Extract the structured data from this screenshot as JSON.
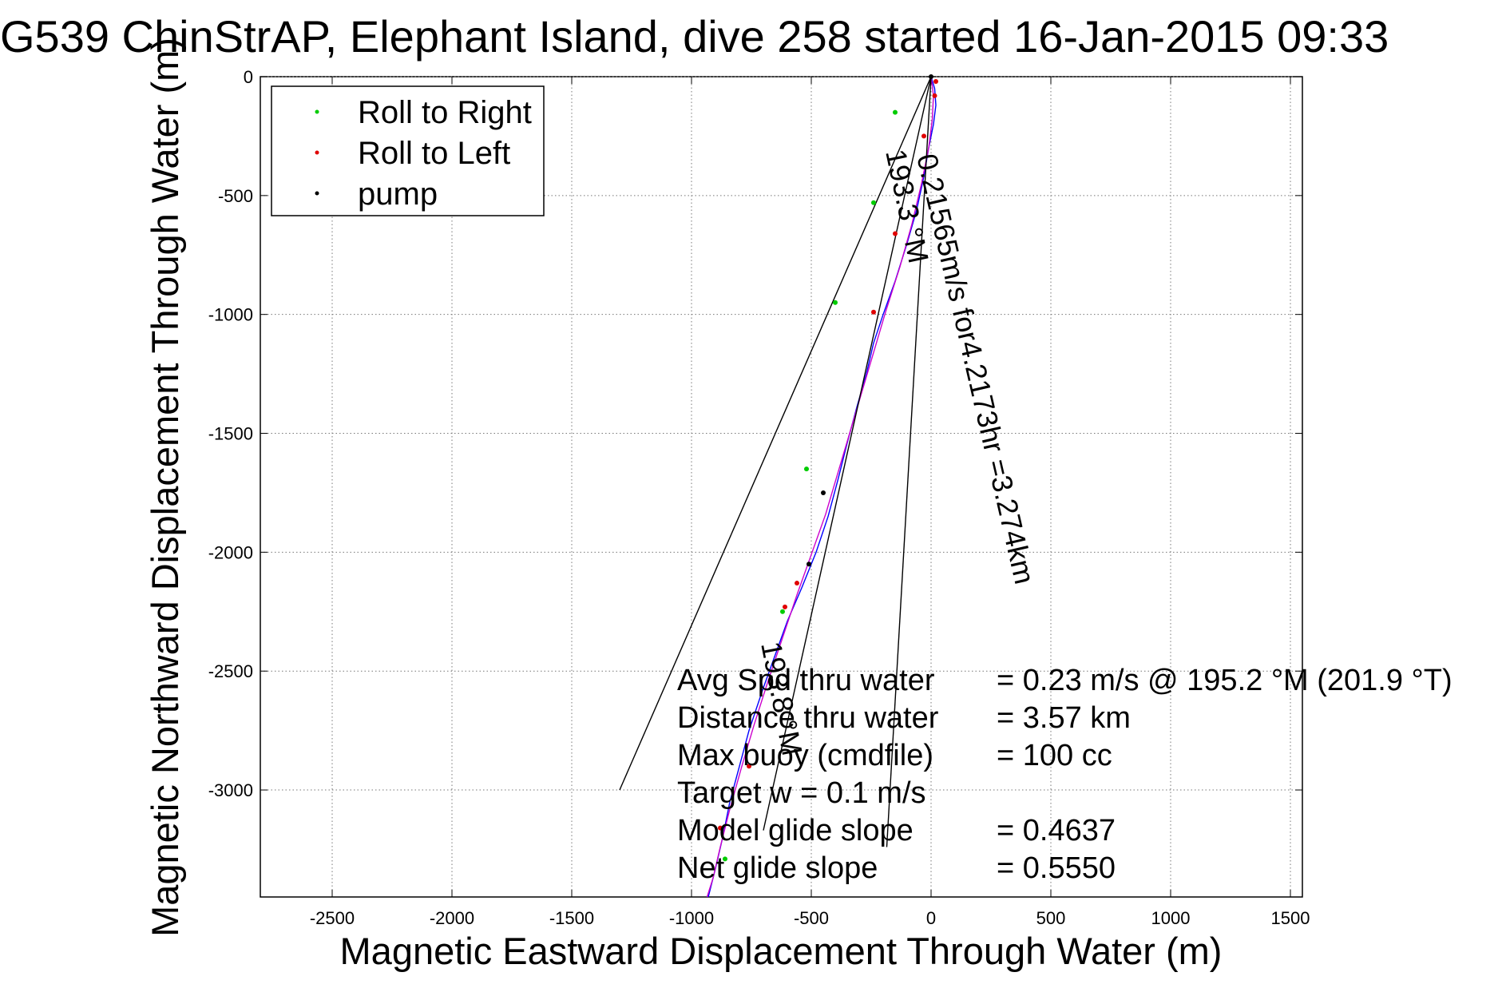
{
  "chart_data": {
    "type": "line",
    "title": "G539 ChinStrAP, Elephant Island, dive 258 started 16-Jan-2015 09:33",
    "xlabel": "Magnetic Eastward Displacement Through Water (m)",
    "ylabel": "Magnetic Northward Displacement Through Water (m)",
    "xlim": [
      -2800,
      1550
    ],
    "ylim": [
      -3450,
      0
    ],
    "xticks": [
      -2500,
      -2000,
      -1500,
      -1000,
      -500,
      0,
      500,
      1000,
      1500
    ],
    "yticks": [
      0,
      -500,
      -1000,
      -1500,
      -2000,
      -2500,
      -3000
    ],
    "grid": true,
    "legend_position": "top-left",
    "legend": [
      {
        "label": "Roll to Right",
        "color": "#00cc00"
      },
      {
        "label": "Roll to Left",
        "color": "#e00000"
      },
      {
        "label": "pump",
        "color": "#000000"
      }
    ],
    "series": [
      {
        "color": "#0000ff",
        "x": [
          0,
          15,
          20,
          10,
          -10,
          -30,
          -60,
          -100,
          -150,
          -200,
          -240,
          -270,
          -310,
          -350,
          -390,
          -430,
          -480,
          -540,
          -600,
          -650,
          -700,
          -760,
          -800,
          -840,
          -870,
          -900,
          -930
        ],
        "y": [
          0,
          -50,
          -120,
          -200,
          -300,
          -420,
          -560,
          -700,
          -860,
          -1000,
          -1120,
          -1250,
          -1390,
          -1540,
          -1700,
          -1850,
          -2000,
          -2150,
          -2290,
          -2430,
          -2570,
          -2750,
          -2900,
          -3050,
          -3200,
          -3330,
          -3450
        ]
      },
      {
        "color": "#cc00cc",
        "x": [
          0,
          10,
          5,
          -10,
          -40,
          -80,
          -130,
          -190,
          -240,
          -290,
          -340,
          -390,
          -440,
          -500,
          -560,
          -620,
          -680,
          -740,
          -790,
          -840,
          -880,
          -910,
          -935
        ],
        "y": [
          0,
          -80,
          -180,
          -300,
          -450,
          -620,
          -800,
          -990,
          -1160,
          -1330,
          -1500,
          -1670,
          -1840,
          -2010,
          -2180,
          -2360,
          -2540,
          -2730,
          -2900,
          -3080,
          -3240,
          -3370,
          -3450
        ]
      },
      {
        "color": "#000000",
        "x": [
          0,
          -1300
        ],
        "y": [
          0,
          -3000
        ]
      },
      {
        "color": "#000000",
        "x": [
          0,
          -185
        ],
        "y": [
          0,
          -3240
        ]
      },
      {
        "color": "#000000",
        "x": [
          0,
          -700
        ],
        "y": [
          0,
          -3170
        ]
      }
    ],
    "markers": {
      "roll_right": {
        "x": [
          -150,
          -240,
          -400,
          -520,
          -620,
          -860
        ],
        "y": [
          -150,
          -530,
          -950,
          -1650,
          -2250,
          -3290
        ]
      },
      "roll_left": {
        "x": [
          20,
          15,
          -30,
          -150,
          -240,
          -560,
          -610,
          -760,
          -880
        ],
        "y": [
          -20,
          -80,
          -250,
          -660,
          -990,
          -2130,
          -2230,
          -2900,
          -3160
        ]
      },
      "pump": {
        "x": [
          0,
          -450,
          -510
        ],
        "y": [
          0,
          -1750,
          -2050
        ]
      }
    },
    "annotations": {
      "heading_ref": "193.3 °M",
      "track_label": "0.21565m/s for4.2173hr =3.274km",
      "partial_label": "193.8 °M",
      "summary": [
        {
          "label": "Avg Spd thru water",
          "value": "=  0.23 m/s @ 195.2 °M (201.9 °T)"
        },
        {
          "label": "Distance thru water",
          "value": "=  3.57 km"
        },
        {
          "label": "Max buoy (cmdfile)",
          "value": "= 100 cc"
        },
        {
          "label": "Target w    = 0.1 m/s",
          "value": ""
        },
        {
          "label": "Model glide slope",
          "value": "= 0.4637"
        },
        {
          "label": "Net glide slope",
          "value": "= 0.5550"
        }
      ]
    }
  }
}
